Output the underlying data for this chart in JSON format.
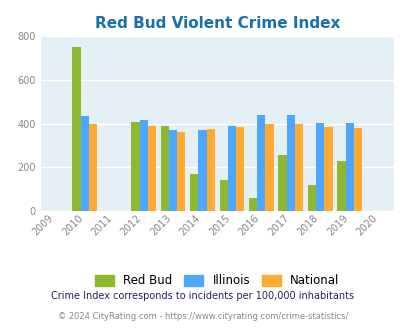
{
  "title": "Red Bud Violent Crime Index",
  "title_color": "#1a6faf",
  "tick_years": [
    2009,
    2010,
    2011,
    2012,
    2013,
    2014,
    2015,
    2016,
    2017,
    2018,
    2019,
    2020
  ],
  "bar_years": [
    2010,
    2012,
    2013,
    2014,
    2015,
    2016,
    2017,
    2018,
    2019
  ],
  "red_bud": [
    750,
    408,
    390,
    168,
    142,
    62,
    255,
    118,
    230
  ],
  "illinois": [
    435,
    415,
    372,
    372,
    388,
    438,
    438,
    405,
    405
  ],
  "national": [
    400,
    388,
    362,
    375,
    383,
    398,
    398,
    383,
    380
  ],
  "color_red_bud": "#8db832",
  "color_illinois": "#4da6ff",
  "color_national": "#ffaa33",
  "ylim": [
    0,
    800
  ],
  "yticks": [
    0,
    200,
    400,
    600,
    800
  ],
  "bg_color": "#e4f0f5",
  "grid_color": "#ffffff",
  "legend_labels": [
    "Red Bud",
    "Illinois",
    "National"
  ],
  "footnote1": "Crime Index corresponds to incidents per 100,000 inhabitants",
  "footnote2": "© 2024 CityRating.com - https://www.cityrating.com/crime-statistics/",
  "footnote1_color": "#222266",
  "footnote2_color": "#888888",
  "bar_width": 0.28
}
